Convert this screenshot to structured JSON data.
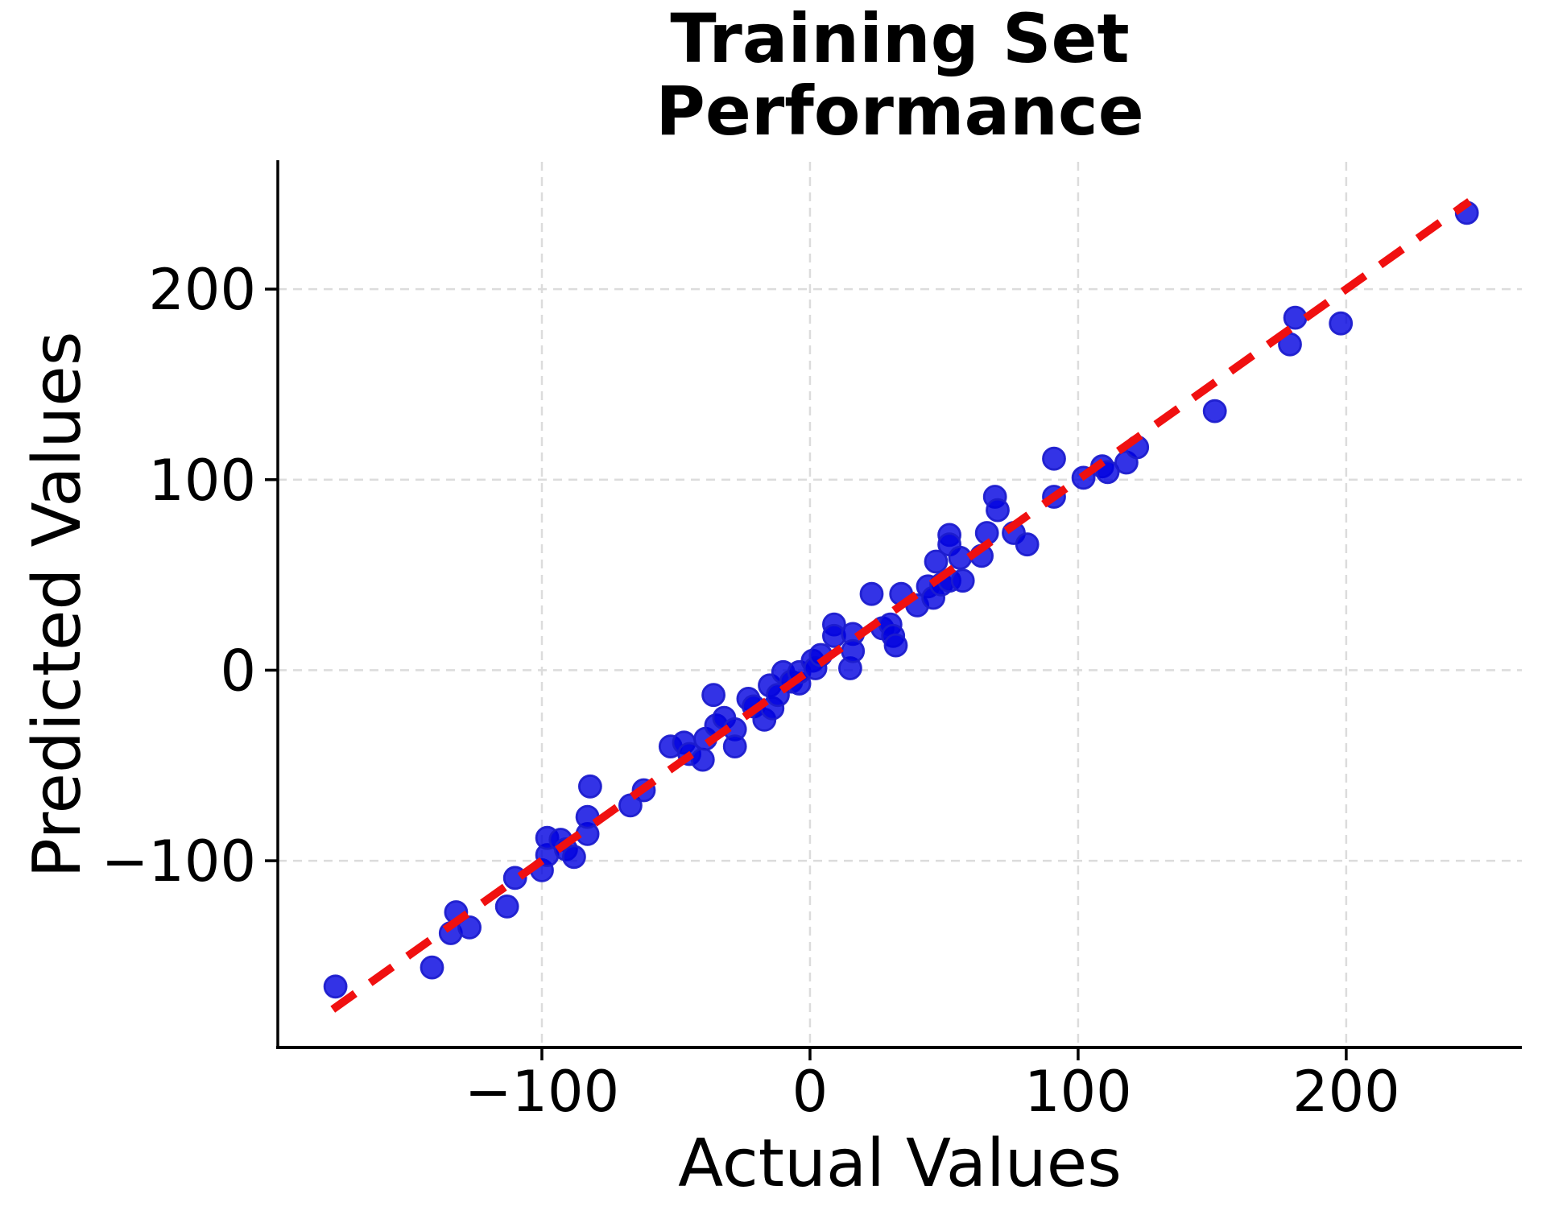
{
  "chart_data": {
    "type": "scatter",
    "title": "Training Set\nPerformance",
    "xlabel": "Actual Values",
    "ylabel": "Predicted Values",
    "xlim": [
      -198.5,
      265.5
    ],
    "ylim": [
      -198.0,
      266.8
    ],
    "x_ticks": [
      -100,
      0,
      100,
      200
    ],
    "y_ticks": [
      -100,
      0,
      100,
      200
    ],
    "x_tick_labels": [
      "−100",
      "0",
      "100",
      "200"
    ],
    "y_tick_labels": [
      "−100",
      "0",
      "100",
      "200"
    ],
    "grid": true,
    "legend": "none",
    "identity_line": {
      "equation": "y = x",
      "x_start": -178,
      "x_end": 246,
      "style": "dashed",
      "color": "#f01010"
    },
    "style": {
      "marker_fill": "#0000e0",
      "marker_fill_opacity": 0.8,
      "marker_edge": "#1c1ccd",
      "grid_color": "#dcdcdc",
      "spine_color": "#000000",
      "background": "#ffffff"
    },
    "points": [
      [
        -177,
        -166
      ],
      [
        -141,
        -156
      ],
      [
        -134,
        -138
      ],
      [
        -132,
        -127
      ],
      [
        -127,
        -135
      ],
      [
        -113,
        -124
      ],
      [
        -110,
        -109
      ],
      [
        -100,
        -105
      ],
      [
        -98,
        -97
      ],
      [
        -98,
        -88
      ],
      [
        -93,
        -89
      ],
      [
        -91,
        -94
      ],
      [
        -88,
        -98
      ],
      [
        -83,
        -86
      ],
      [
        -83,
        -77
      ],
      [
        -82,
        -61
      ],
      [
        -67,
        -71
      ],
      [
        -62,
        -63
      ],
      [
        -52,
        -40
      ],
      [
        -47,
        -38
      ],
      [
        -45,
        -44
      ],
      [
        -40,
        -47
      ],
      [
        -39,
        -36
      ],
      [
        -36,
        -13
      ],
      [
        -35,
        -29
      ],
      [
        -32,
        -25
      ],
      [
        -28,
        -31
      ],
      [
        -28,
        -40
      ],
      [
        -23,
        -15
      ],
      [
        -21,
        -19
      ],
      [
        -17,
        -26
      ],
      [
        -15,
        -8
      ],
      [
        -14,
        -20
      ],
      [
        -12,
        -13
      ],
      [
        -10,
        -1
      ],
      [
        -7,
        -6
      ],
      [
        -4,
        -7
      ],
      [
        -4,
        -1
      ],
      [
        1,
        5
      ],
      [
        2,
        1
      ],
      [
        4,
        8
      ],
      [
        9,
        24
      ],
      [
        9,
        18
      ],
      [
        15,
        1
      ],
      [
        16,
        19
      ],
      [
        16,
        10
      ],
      [
        23,
        40
      ],
      [
        27,
        22
      ],
      [
        30,
        24
      ],
      [
        31,
        18
      ],
      [
        32,
        13
      ],
      [
        34,
        40
      ],
      [
        40,
        34
      ],
      [
        44,
        44
      ],
      [
        46,
        38
      ],
      [
        47,
        57
      ],
      [
        49,
        45
      ],
      [
        52,
        47
      ],
      [
        52,
        71
      ],
      [
        52,
        66
      ],
      [
        56,
        59
      ],
      [
        57,
        47
      ],
      [
        64,
        60
      ],
      [
        66,
        72
      ],
      [
        69,
        91
      ],
      [
        70,
        84
      ],
      [
        76,
        72
      ],
      [
        81,
        66
      ],
      [
        91,
        111
      ],
      [
        91,
        91
      ],
      [
        102,
        101
      ],
      [
        109,
        107
      ],
      [
        111,
        104
      ],
      [
        118,
        109
      ],
      [
        122,
        117
      ],
      [
        151,
        136
      ],
      [
        179,
        171
      ],
      [
        181,
        185
      ],
      [
        198,
        182
      ],
      [
        245,
        240
      ]
    ]
  }
}
